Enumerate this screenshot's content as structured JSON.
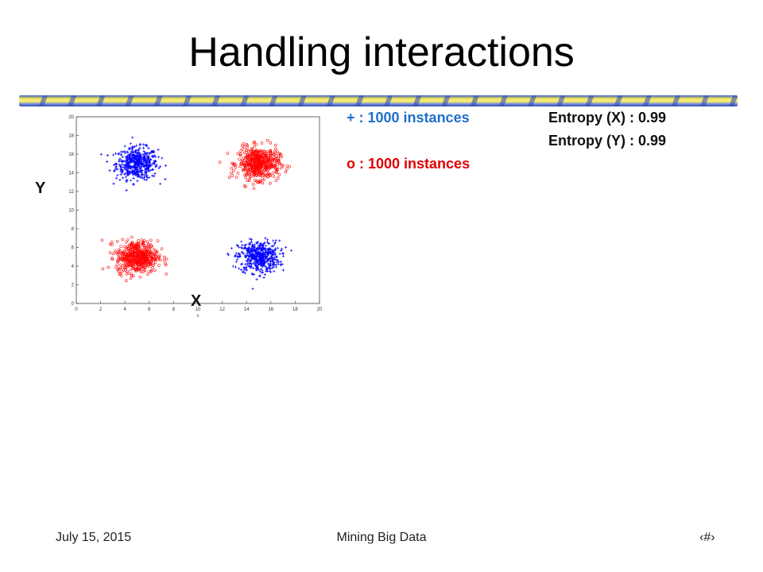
{
  "slide": {
    "title": "Handling interactions",
    "legend_plus": "+ : 1000 instances",
    "legend_o": "o : 1000 instances",
    "entropy_x": "Entropy (X) : 0.99",
    "entropy_y": "Entropy (Y) : 0.99",
    "axis_y_big": "Y",
    "axis_x_big": "X",
    "footer_date": "July 15, 2015",
    "footer_center": "Mining Big Data",
    "footer_page": "‹#›"
  },
  "colors": {
    "plus": "#0000ff",
    "circle": "#ff0000",
    "legend_plus": "#1f6fc8",
    "legend_o": "#e00000"
  },
  "chart_data": {
    "type": "scatter",
    "xlim": [
      0,
      20
    ],
    "ylim": [
      0,
      20
    ],
    "xticks": [
      0,
      2,
      4,
      6,
      8,
      10,
      12,
      14,
      16,
      18,
      20
    ],
    "yticks": [
      0,
      2,
      4,
      6,
      8,
      10,
      12,
      14,
      16,
      18,
      20
    ],
    "xlabel": "x",
    "grid": false,
    "series": [
      {
        "marker": "+",
        "color": "#0000ff",
        "clusters": [
          {
            "center": [
              5,
              15
            ],
            "sd": 0.85,
            "count": 500
          },
          {
            "center": [
              15,
              5
            ],
            "sd": 0.85,
            "count": 500
          }
        ]
      },
      {
        "marker": "o",
        "color": "#ff0000",
        "clusters": [
          {
            "center": [
              15,
              15
            ],
            "sd": 0.85,
            "count": 500
          },
          {
            "center": [
              5,
              5
            ],
            "sd": 0.85,
            "count": 500
          }
        ]
      }
    ]
  }
}
